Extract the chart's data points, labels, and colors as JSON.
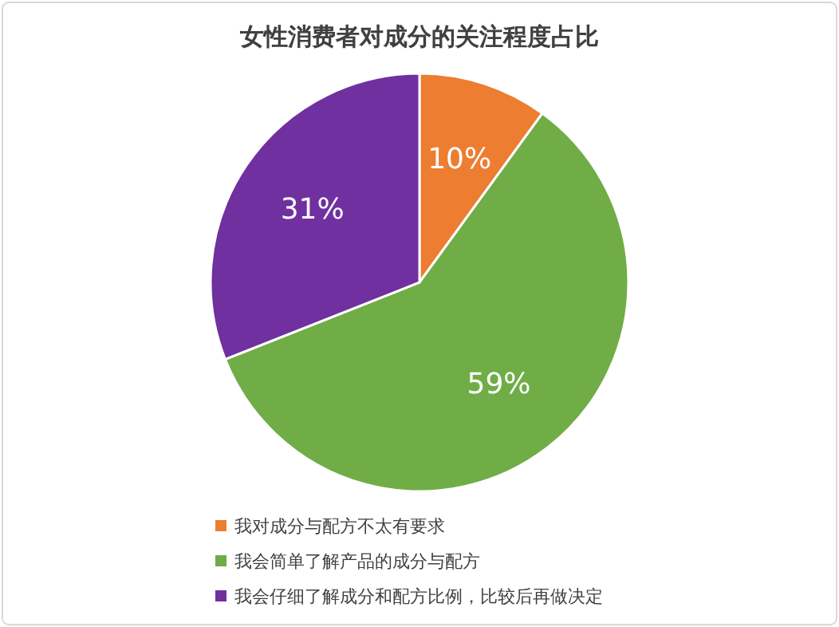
{
  "chart_data": {
    "type": "pie",
    "title": "女性消费者对成分的关注程度占比",
    "categories": [
      "我对成分与配方不太有要求",
      "我会简单了解产品的成分与配方",
      "我会仔细了解成分和配方比例，比较后再做决定"
    ],
    "values": [
      10,
      59,
      31
    ],
    "colors": [
      "#ed7d31",
      "#70ad47",
      "#7030a0"
    ],
    "value_labels": [
      "10%",
      "59%",
      "31%"
    ],
    "legend": "bottom"
  }
}
